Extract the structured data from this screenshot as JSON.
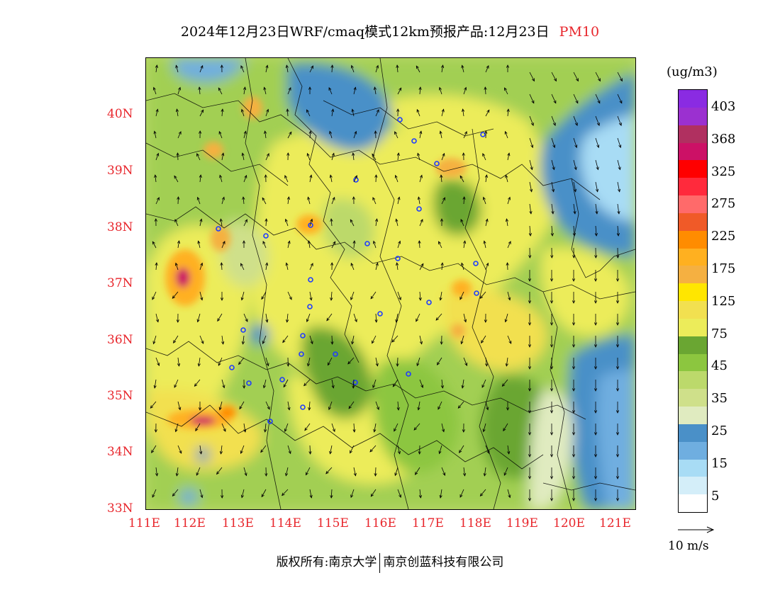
{
  "title": {
    "main": "2024年12月23日WRF/cmaq模式12km预报产品:12月23日",
    "variable": "PM10"
  },
  "axes": {
    "lat_labels": [
      "40N",
      "39N",
      "38N",
      "37N",
      "36N",
      "35N",
      "34N",
      "33N"
    ],
    "lon_labels": [
      "111E",
      "112E",
      "113E",
      "114E",
      "115E",
      "116E",
      "117E",
      "118E",
      "119E",
      "120E",
      "121E"
    ]
  },
  "colorbar": {
    "units": "(ug/m3)",
    "labels": [
      "403",
      "368",
      "325",
      "275",
      "225",
      "175",
      "125",
      "75",
      "45",
      "35",
      "25",
      "15",
      "5"
    ],
    "colors": [
      "#8a2be2",
      "#9b30d0",
      "#b03060",
      "#cc1166",
      "#ff0000",
      "#ff2a3c",
      "#ff6a6a",
      "#f05a28",
      "#ff8c00",
      "#ffb020",
      "#f5b041",
      "#ffe600",
      "#f2e050",
      "#ecec5a",
      "#6aa632",
      "#8cc63f",
      "#bcd96b",
      "#cfe08a",
      "#e0ebc0",
      "#4a90c8",
      "#6faee0",
      "#a8dcf5",
      "#d4eef9",
      "#ffffff"
    ]
  },
  "wind_reference": {
    "label": "10 m/s"
  },
  "footer": {
    "left": "版权所有:南京大学",
    "right": "南京创蓝科技有限公司"
  }
}
